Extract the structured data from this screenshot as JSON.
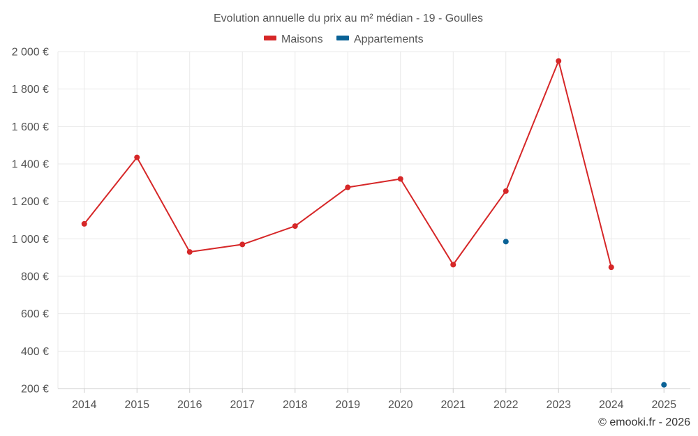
{
  "chart_data": {
    "type": "line",
    "title": "Evolution annuelle du prix au m² médian - 19 - Goulles",
    "categories": [
      "2014",
      "2015",
      "2016",
      "2017",
      "2018",
      "2019",
      "2020",
      "2021",
      "2022",
      "2023",
      "2024",
      "2025"
    ],
    "series": [
      {
        "name": "Maisons",
        "color": "#d62728",
        "values": [
          1080,
          1435,
          930,
          970,
          1068,
          1275,
          1320,
          862,
          1255,
          1950,
          848,
          null
        ]
      },
      {
        "name": "Appartements",
        "color": "#0a6296",
        "values": [
          null,
          null,
          null,
          null,
          null,
          null,
          null,
          null,
          985,
          null,
          null,
          220
        ]
      }
    ],
    "ylim": [
      200,
      2000
    ],
    "yticks": [
      200,
      400,
      600,
      800,
      1000,
      1200,
      1400,
      1600,
      1800,
      2000
    ],
    "ytick_labels": [
      "200 €",
      "400 €",
      "600 €",
      "800 €",
      "1 000 €",
      "1 200 €",
      "1 400 €",
      "1 600 €",
      "1 800 €",
      "2 000 €"
    ],
    "xlabel": "",
    "ylabel": "",
    "legend_position": "top-center",
    "grid": true,
    "credit": "© emooki.fr - 2026"
  }
}
